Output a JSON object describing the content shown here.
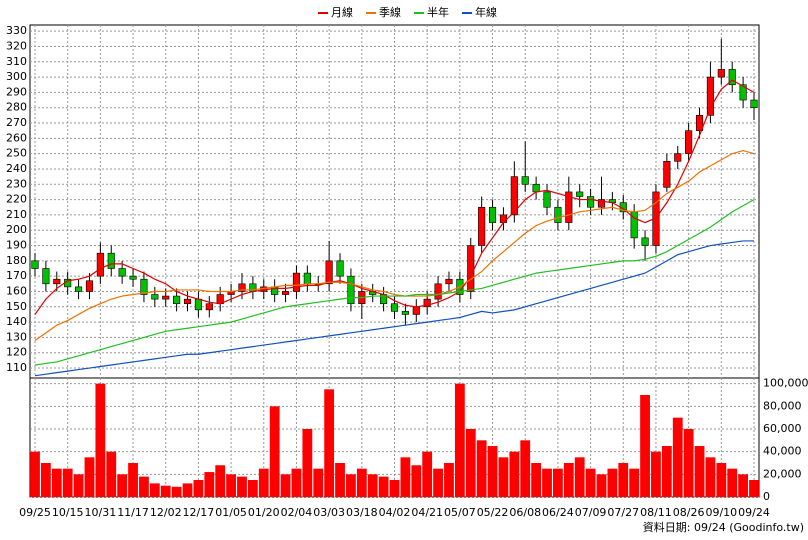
{
  "chart_data": [
    {
      "type": "candlestick",
      "legend": "top",
      "grid": true,
      "up_color": "#ff0000",
      "down_color": "#00c000",
      "source": "資料日期: 09/24 (Goodinfo.tw)",
      "categories": [
        "09/25",
        null,
        null,
        "10/15",
        null,
        null,
        "10/31",
        null,
        null,
        "11/17",
        null,
        null,
        "12/02",
        null,
        null,
        "12/17",
        null,
        null,
        "01/05",
        null,
        null,
        "01/20",
        null,
        null,
        "02/04",
        null,
        null,
        "03/03",
        null,
        null,
        "03/18",
        null,
        null,
        "04/02",
        null,
        null,
        "04/21",
        null,
        null,
        "05/07",
        null,
        null,
        "05/22",
        null,
        null,
        "06/08",
        null,
        null,
        "06/24",
        null,
        null,
        "07/09",
        null,
        null,
        "07/27",
        null,
        null,
        "08/11",
        null,
        null,
        "08/26",
        null,
        null,
        "09/10",
        null,
        null,
        "09/24"
      ],
      "open": [
        180,
        175,
        165,
        168,
        163,
        160,
        170,
        185,
        175,
        170,
        168,
        158,
        155,
        157,
        152,
        155,
        148,
        152,
        158,
        160,
        165,
        160,
        163,
        158,
        160,
        172,
        165,
        165,
        180,
        170,
        152,
        160,
        158,
        152,
        147,
        145,
        150,
        155,
        165,
        168,
        160,
        190,
        215,
        205,
        210,
        235,
        230,
        225,
        215,
        205,
        225,
        222,
        215,
        220,
        218,
        212,
        195,
        190,
        228,
        245,
        250,
        265,
        275,
        300,
        305,
        295,
        285
      ],
      "high": [
        185,
        180,
        173,
        173,
        168,
        172,
        192,
        190,
        180,
        175,
        173,
        163,
        162,
        162,
        160,
        160,
        157,
        163,
        165,
        172,
        170,
        168,
        168,
        165,
        177,
        177,
        170,
        193,
        185,
        175,
        165,
        165,
        163,
        157,
        152,
        155,
        160,
        170,
        173,
        173,
        195,
        222,
        220,
        215,
        245,
        258,
        235,
        230,
        220,
        235,
        230,
        227,
        235,
        225,
        223,
        217,
        200,
        230,
        250,
        255,
        270,
        280,
        310,
        325,
        310,
        300,
        290
      ],
      "low": [
        170,
        160,
        160,
        158,
        155,
        155,
        165,
        170,
        165,
        163,
        153,
        150,
        150,
        147,
        147,
        143,
        143,
        147,
        153,
        155,
        155,
        155,
        153,
        153,
        155,
        160,
        160,
        160,
        165,
        147,
        142,
        153,
        147,
        142,
        138,
        140,
        145,
        150,
        160,
        153,
        155,
        185,
        200,
        200,
        205,
        225,
        220,
        210,
        200,
        200,
        215,
        210,
        210,
        213,
        207,
        188,
        180,
        185,
        225,
        240,
        245,
        260,
        270,
        295,
        290,
        280,
        272
      ],
      "close": [
        175,
        165,
        168,
        163,
        160,
        167,
        185,
        175,
        170,
        168,
        158,
        155,
        157,
        152,
        155,
        148,
        152,
        158,
        160,
        165,
        160,
        163,
        158,
        160,
        172,
        165,
        165,
        180,
        170,
        152,
        160,
        158,
        152,
        147,
        145,
        150,
        155,
        165,
        168,
        158,
        190,
        215,
        205,
        210,
        235,
        230,
        225,
        215,
        205,
        225,
        222,
        215,
        220,
        218,
        212,
        195,
        190,
        225,
        245,
        250,
        265,
        275,
        300,
        305,
        295,
        285,
        280
      ],
      "series": [
        {
          "name": "月線",
          "color": "#e00000",
          "values": [
            145,
            155,
            162,
            167,
            168,
            170,
            175,
            178,
            178,
            175,
            172,
            168,
            165,
            160,
            157,
            155,
            153,
            152,
            155,
            158,
            160,
            161,
            162,
            162,
            163,
            164,
            164,
            166,
            167,
            165,
            162,
            160,
            158,
            154,
            151,
            150,
            151,
            153,
            156,
            160,
            170,
            185,
            195,
            205,
            212,
            220,
            225,
            226,
            224,
            222,
            220,
            220,
            219,
            218,
            214,
            208,
            205,
            208,
            218,
            230,
            245,
            262,
            280,
            292,
            298,
            294,
            290
          ]
        },
        {
          "name": "季線",
          "color": "#f07000",
          "values": [
            128,
            133,
            138,
            141,
            145,
            149,
            152,
            155,
            157,
            158,
            159,
            160,
            160,
            161,
            161,
            161,
            160,
            160,
            160,
            161,
            161,
            162,
            163,
            164,
            164,
            165,
            165,
            166,
            166,
            165,
            163,
            161,
            160,
            158,
            157,
            157,
            157,
            158,
            160,
            163,
            168,
            173,
            180,
            186,
            192,
            198,
            203,
            206,
            208,
            210,
            212,
            213,
            214,
            215,
            213,
            212,
            213,
            218,
            224,
            228,
            232,
            238,
            242,
            246,
            250,
            252,
            250
          ]
        },
        {
          "name": "半年",
          "color": "#20c020",
          "values": [
            112,
            113,
            114,
            116,
            118,
            120,
            122,
            124,
            126,
            128,
            130,
            132,
            134,
            135,
            136,
            137,
            138,
            139,
            140,
            142,
            144,
            146,
            148,
            150,
            151,
            152,
            153,
            154,
            155,
            156,
            156,
            157,
            157,
            157,
            157,
            158,
            158,
            158,
            159,
            160,
            161,
            162,
            164,
            166,
            168,
            170,
            172,
            173,
            174,
            175,
            176,
            177,
            178,
            179,
            180,
            180,
            181,
            183,
            186,
            190,
            194,
            198,
            202,
            207,
            212,
            216,
            220
          ]
        },
        {
          "name": "年線",
          "color": "#1050c0",
          "values": [
            105,
            106,
            107,
            108,
            109,
            110,
            111,
            112,
            113,
            114,
            115,
            116,
            117,
            118,
            119,
            119,
            120,
            121,
            122,
            123,
            124,
            125,
            126,
            127,
            128,
            129,
            130,
            131,
            132,
            133,
            134,
            135,
            136,
            137,
            138,
            139,
            140,
            141,
            142,
            143,
            145,
            147,
            146,
            147,
            148,
            150,
            152,
            154,
            156,
            158,
            160,
            162,
            164,
            166,
            168,
            170,
            172,
            176,
            180,
            184,
            186,
            188,
            190,
            191,
            192,
            193,
            193
          ]
        }
      ],
      "ylim": [
        103.5,
        334
      ],
      "yticks": [
        110,
        120,
        130,
        140,
        150,
        160,
        170,
        180,
        190,
        200,
        210,
        220,
        230,
        240,
        250,
        260,
        270,
        280,
        290,
        300,
        310,
        320,
        330
      ]
    },
    {
      "type": "bar",
      "color": "#ff0000",
      "grid": true,
      "values": [
        40000,
        30000,
        25000,
        25000,
        20000,
        35000,
        100000,
        40000,
        20000,
        30000,
        18000,
        12000,
        10000,
        9000,
        12000,
        15000,
        22000,
        28000,
        20000,
        18000,
        15000,
        25000,
        80000,
        20000,
        25000,
        60000,
        25000,
        95000,
        30000,
        20000,
        25000,
        20000,
        18000,
        15000,
        35000,
        28000,
        40000,
        25000,
        30000,
        100000,
        60000,
        50000,
        45000,
        35000,
        40000,
        50000,
        30000,
        25000,
        25000,
        30000,
        35000,
        25000,
        20000,
        25000,
        30000,
        25000,
        90000,
        40000,
        45000,
        70000,
        60000,
        45000,
        35000,
        30000,
        25000,
        20000,
        15000
      ],
      "ylim": [
        0,
        105000
      ],
      "yticks": [
        0,
        {
          "value": 20000,
          "label": "20,000"
        },
        {
          "value": 40000,
          "label": "40,000"
        },
        {
          "value": 60000,
          "label": "60,000"
        },
        {
          "value": 80000,
          "label": "80,000"
        },
        {
          "value": 100000,
          "label": "100,000"
        }
      ]
    }
  ]
}
